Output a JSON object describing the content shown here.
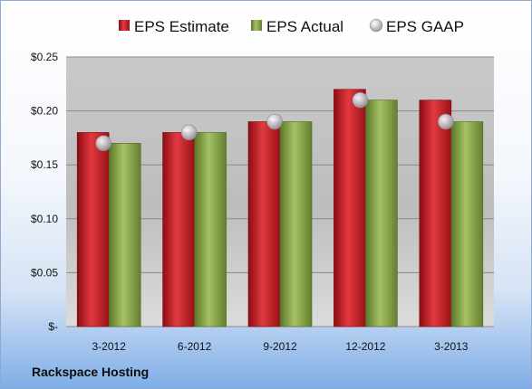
{
  "chart_data": {
    "type": "bar",
    "categories": [
      "3-2012",
      "6-2012",
      "9-2012",
      "12-2012",
      "3-2013"
    ],
    "series": [
      {
        "name": "EPS Estimate",
        "kind": "bar",
        "color": "#c0161d",
        "values": [
          0.18,
          0.18,
          0.19,
          0.22,
          0.21
        ]
      },
      {
        "name": "EPS Actual",
        "kind": "bar",
        "color": "#7e9e3c",
        "values": [
          0.17,
          0.18,
          0.19,
          0.21,
          0.19
        ]
      },
      {
        "name": "EPS GAAP",
        "kind": "marker",
        "color": "#b7bcc4",
        "values": [
          0.17,
          0.18,
          0.19,
          0.21,
          0.19
        ]
      }
    ],
    "yticks": [
      0,
      0.05,
      0.1,
      0.15,
      0.2,
      0.25
    ],
    "ytick_labels": [
      "$-",
      "$0.05",
      "$0.10",
      "$0.15",
      "$0.20",
      "$0.25"
    ],
    "ylim": [
      0,
      0.25
    ],
    "grid": true,
    "legend_position": "top",
    "xlabel": "",
    "ylabel": ""
  },
  "footer": {
    "company": "Rackspace Hosting"
  }
}
